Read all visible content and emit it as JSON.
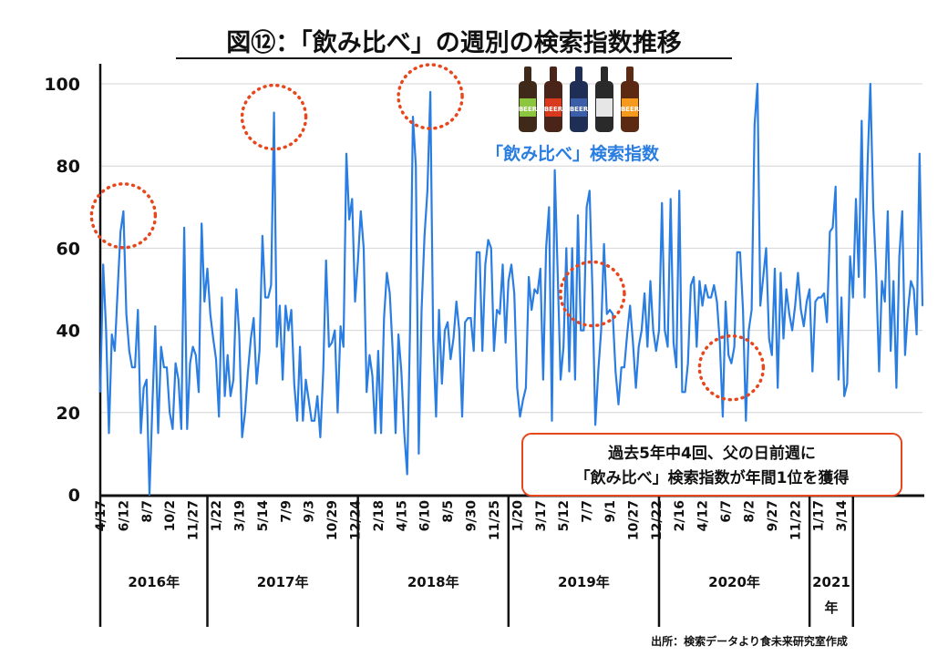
{
  "chart_data": {
    "type": "line",
    "title": "図⑫：「飲み比べ」の週別の検索指数推移",
    "series": [
      {
        "name": "「飲み比べ」検索指数",
        "color": "#2a7de1",
        "values": [
          25,
          56,
          40,
          15,
          39,
          35,
          50,
          64,
          69,
          44,
          35,
          31,
          31,
          45,
          15,
          26,
          28,
          0,
          22,
          41,
          15,
          36,
          31,
          31,
          20,
          16,
          32,
          28,
          16,
          65,
          16,
          32,
          36,
          34,
          25,
          66,
          47,
          55,
          44,
          38,
          33,
          19,
          48,
          24,
          34,
          24,
          28,
          50,
          39,
          14,
          20,
          30,
          38,
          43,
          27,
          35,
          63,
          48,
          48,
          51,
          93,
          36,
          46,
          28,
          46,
          40,
          45,
          27,
          18,
          36,
          18,
          28,
          23,
          18,
          18,
          24,
          14,
          30,
          57,
          36,
          37,
          40,
          20,
          41,
          36,
          83,
          67,
          72,
          47,
          57,
          69,
          60,
          25,
          34,
          29,
          15,
          35,
          15,
          43,
          54,
          49,
          35,
          15,
          39,
          30,
          15,
          5,
          40,
          92,
          80,
          10,
          45,
          63,
          74,
          98,
          38,
          19,
          45,
          27,
          40,
          42,
          33,
          38,
          47,
          40,
          19,
          42,
          43,
          43,
          35,
          59,
          59,
          35,
          56,
          62,
          60,
          35,
          45,
          44,
          56,
          37,
          52,
          56,
          49,
          26,
          19,
          23,
          26,
          53,
          45,
          50,
          49,
          55,
          28,
          60,
          70,
          18,
          79,
          54,
          28,
          36,
          60,
          30,
          60,
          28,
          68,
          40,
          40,
          70,
          74,
          50,
          17,
          30,
          40,
          61,
          44,
          45,
          44,
          30,
          22,
          31,
          31,
          39,
          46,
          37,
          26,
          36,
          40,
          49,
          36,
          52,
          40,
          35,
          40,
          71,
          40,
          36,
          72,
          37,
          31,
          74,
          25,
          25,
          32,
          51,
          53,
          36,
          52,
          46,
          51,
          48,
          48,
          51,
          47,
          37,
          19,
          47,
          34,
          32,
          36,
          59,
          59,
          45,
          18,
          40,
          45,
          90,
          100,
          46,
          53,
          60,
          38,
          34,
          55,
          26,
          54,
          38,
          50,
          44,
          40,
          46,
          54,
          45,
          41,
          47,
          50,
          30,
          47,
          48,
          48,
          49,
          42,
          64,
          65,
          75,
          28,
          48,
          24,
          27,
          58,
          48,
          72,
          53,
          91,
          48,
          80,
          100,
          70,
          54,
          30,
          52,
          47,
          69,
          35,
          52,
          26,
          58,
          69,
          34,
          45,
          52,
          50,
          39,
          83,
          46
        ]
      }
    ],
    "y_ticks": [
      0,
      20,
      40,
      60,
      80,
      100
    ],
    "ylim": [
      0,
      100
    ],
    "x_tick_labels": [
      "4/17",
      "6/12",
      "8/7",
      "10/2",
      "11/27",
      "1/22",
      "3/19",
      "5/14",
      "7/9",
      "9/3",
      "10/29",
      "12/24",
      "2/18",
      "4/15",
      "6/10",
      "8/5",
      "9/30",
      "11/25",
      "1/20",
      "3/17",
      "5/12",
      "7/7",
      "9/1",
      "10/27",
      "12/22",
      "2/16",
      "4/12",
      "6/7",
      "8/2",
      "9/27",
      "11/22",
      "1/17",
      "3/14"
    ],
    "x_tick_weeks": [
      0,
      8,
      16,
      24,
      32,
      40,
      48,
      56,
      64,
      72,
      80,
      88,
      96,
      104,
      112,
      120,
      128,
      136,
      144,
      152,
      160,
      168,
      176,
      184,
      192,
      200,
      208,
      216,
      224,
      232,
      240,
      248,
      256
    ],
    "year_boundaries": [
      0,
      37,
      89,
      141,
      193,
      245,
      260,
      262
    ],
    "year_labels": [
      "2016年",
      "2017年",
      "2018年",
      "2019年",
      "2020年",
      "2021年"
    ],
    "grid": true,
    "highlighted_peaks": [
      8,
      60,
      114,
      170,
      218
    ],
    "series_label": "「飲み比べ」検索指数",
    "annotation": {
      "line1": "過去5年中4回、父の日前週に",
      "line2": "「飲み比べ」検索指数が年間1位を獲得"
    },
    "source": "出所：検索データより食未来研究室作成",
    "bottle_labels": [
      "BEER",
      "BEER",
      "BEER",
      "",
      "BEER"
    ]
  }
}
